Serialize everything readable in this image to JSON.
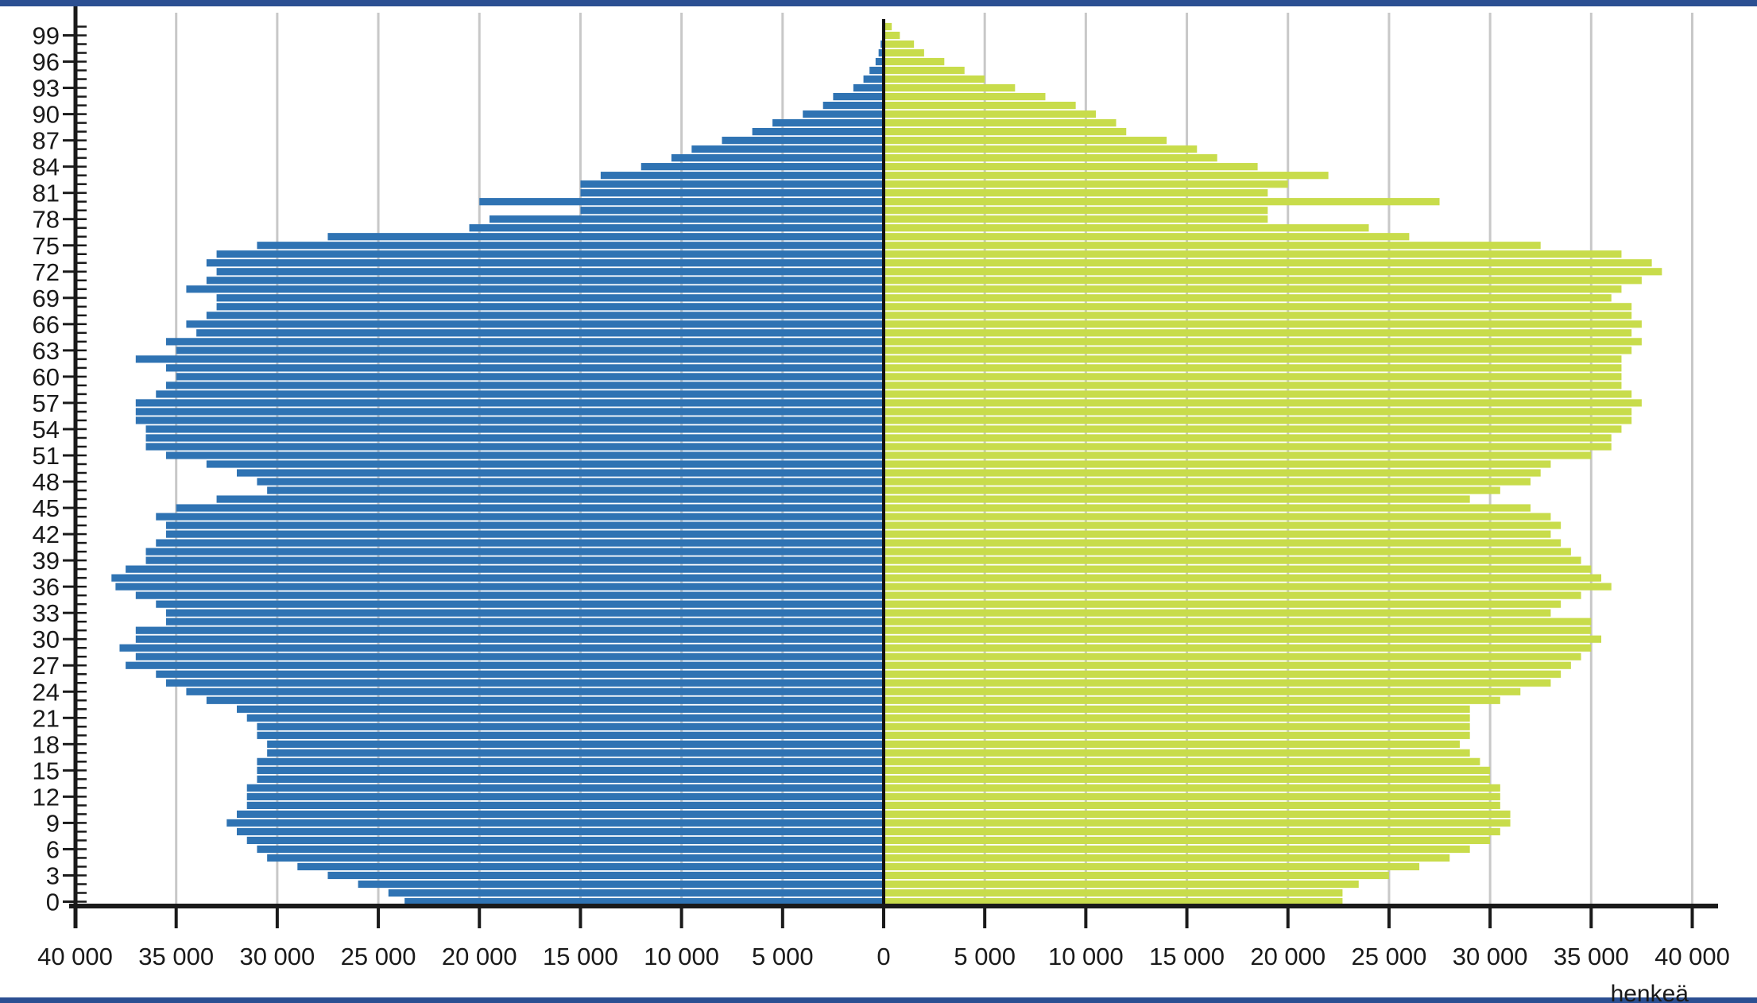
{
  "chart_data": {
    "type": "bar",
    "orientation": "horizontal",
    "layout": "population-pyramid",
    "unit_label": "henkeä",
    "ages": [
      0,
      1,
      2,
      3,
      4,
      5,
      6,
      7,
      8,
      9,
      10,
      11,
      12,
      13,
      14,
      15,
      16,
      17,
      18,
      19,
      20,
      21,
      22,
      23,
      24,
      25,
      26,
      27,
      28,
      29,
      30,
      31,
      32,
      33,
      34,
      35,
      36,
      37,
      38,
      39,
      40,
      41,
      42,
      43,
      44,
      45,
      46,
      47,
      48,
      49,
      50,
      51,
      52,
      53,
      54,
      55,
      56,
      57,
      58,
      59,
      60,
      61,
      62,
      63,
      64,
      65,
      66,
      67,
      68,
      69,
      70,
      71,
      72,
      73,
      74,
      75,
      76,
      77,
      78,
      79,
      80,
      81,
      82,
      83,
      84,
      85,
      86,
      87,
      88,
      89,
      90,
      91,
      92,
      93,
      94,
      95,
      96,
      97,
      98,
      99,
      100
    ],
    "y_tick_labels": [
      "0",
      "3",
      "6",
      "9",
      "12",
      "15",
      "18",
      "21",
      "24",
      "27",
      "30",
      "33",
      "36",
      "39",
      "42",
      "45",
      "48",
      "51",
      "54",
      "57",
      "60",
      "63",
      "66",
      "69",
      "72",
      "75",
      "78",
      "81",
      "84",
      "87",
      "90",
      "93",
      "96",
      "99"
    ],
    "x_tick_labels": [
      "40 000",
      "35 000",
      "30 000",
      "25 000",
      "20 000",
      "15 000",
      "10 000",
      "5 000",
      "0",
      "5 000",
      "10 000",
      "15 000",
      "20 000",
      "25 000",
      "30 000",
      "35 000",
      "40 000"
    ],
    "x_tick_values": [
      -40000,
      -35000,
      -30000,
      -25000,
      -20000,
      -15000,
      -10000,
      -5000,
      0,
      5000,
      10000,
      15000,
      20000,
      25000,
      30000,
      35000,
      40000
    ],
    "xlim": [
      -40000,
      40000
    ],
    "grid": true,
    "series": [
      {
        "side": "left",
        "color": "#2f73b3",
        "values": [
          23700,
          24500,
          26000,
          27500,
          29000,
          30500,
          31000,
          31500,
          32000,
          32500,
          32000,
          31500,
          31500,
          31500,
          31000,
          31000,
          31000,
          30500,
          30500,
          31000,
          31000,
          31500,
          32000,
          33500,
          34500,
          35500,
          36000,
          37500,
          37000,
          37800,
          37000,
          37000,
          35500,
          35500,
          36000,
          37000,
          38000,
          38200,
          37500,
          36500,
          36500,
          36000,
          35500,
          35500,
          36000,
          35000,
          33000,
          30500,
          31000,
          32000,
          33500,
          35500,
          36500,
          36500,
          36500,
          37000,
          37000,
          37000,
          36000,
          35500,
          35000,
          35500,
          37000,
          35000,
          35500,
          34000,
          34500,
          33500,
          33000,
          33000,
          34500,
          33500,
          33000,
          33500,
          33000,
          31000,
          27500,
          20500,
          19500,
          15000,
          20000,
          15000,
          15000,
          14000,
          12000,
          10500,
          9500,
          8000,
          6500,
          5500,
          4000,
          3000,
          2500,
          1500,
          1000,
          700,
          400,
          250,
          150,
          80,
          40
        ]
      },
      {
        "side": "right",
        "color": "#c8dc4b",
        "values": [
          22700,
          22700,
          23500,
          25000,
          26500,
          28000,
          29000,
          30000,
          30500,
          31000,
          31000,
          30500,
          30500,
          30500,
          30000,
          30000,
          29500,
          29000,
          28500,
          29000,
          29000,
          29000,
          29000,
          30500,
          31500,
          33000,
          33500,
          34000,
          34500,
          35000,
          35500,
          35000,
          35000,
          33000,
          33500,
          34500,
          36000,
          35500,
          35000,
          34500,
          34000,
          33500,
          33000,
          33500,
          33000,
          32000,
          29000,
          30500,
          32000,
          32500,
          33000,
          35000,
          36000,
          36000,
          36500,
          37000,
          37000,
          37500,
          37000,
          36500,
          36500,
          36500,
          36500,
          37000,
          37500,
          37000,
          37500,
          37000,
          37000,
          36000,
          36500,
          37500,
          38500,
          38000,
          36500,
          32500,
          26000,
          24000,
          19000,
          19000,
          27500,
          19000,
          20000,
          22000,
          18500,
          16500,
          15500,
          14000,
          12000,
          11500,
          10500,
          9500,
          8000,
          6500,
          5000,
          4000,
          3000,
          2000,
          1500,
          800,
          400
        ]
      }
    ]
  }
}
